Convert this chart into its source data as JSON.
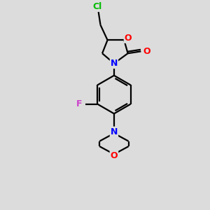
{
  "background_color": "#dcdcdc",
  "bond_color": "#000000",
  "atom_colors": {
    "Cl": "#00bb00",
    "O": "#ff0000",
    "N": "#0000ff",
    "F": "#cc44cc",
    "C": "#000000"
  },
  "line_width": 1.6,
  "font_size": 8.5
}
